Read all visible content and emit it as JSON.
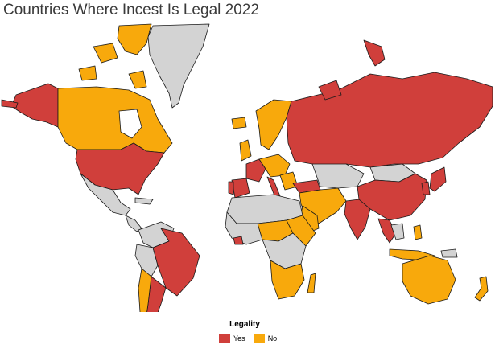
{
  "title": "Countries Where Incest Is Legal 2022",
  "colors": {
    "yes": "#d03f3b",
    "no": "#f8a90c",
    "none": "#d3d3d3",
    "border": "#1a1a1a"
  },
  "legend": {
    "title": "Legality",
    "items": [
      {
        "label": "Yes",
        "color": "#d03f3b"
      },
      {
        "label": "No",
        "color": "#f8a90c"
      }
    ]
  }
}
